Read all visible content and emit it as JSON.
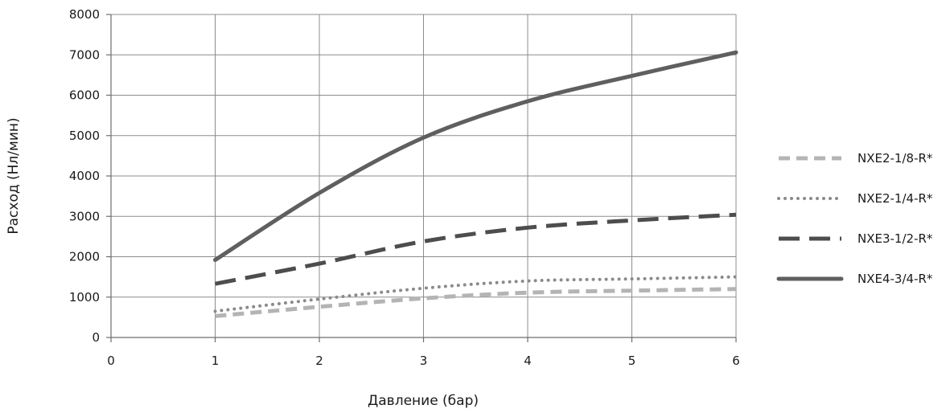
{
  "chart_data": {
    "type": "line",
    "title": "",
    "xlabel": "Давление (бар)",
    "ylabel": "Расход (Нл/мин)",
    "xlim": [
      0,
      6
    ],
    "ylim": [
      0,
      8000
    ],
    "x_ticks": [
      0,
      1,
      2,
      3,
      4,
      5,
      6
    ],
    "y_ticks": [
      0,
      1000,
      2000,
      3000,
      4000,
      5000,
      6000,
      7000,
      8000
    ],
    "grid": true,
    "legend_position": "right",
    "series": [
      {
        "name": "NXE2-1/8-R*",
        "style": "dashed",
        "color": "#b4b4b4",
        "x": [
          1,
          2,
          3,
          4,
          5,
          6
        ],
        "y": [
          530,
          760,
          970,
          1110,
          1160,
          1200
        ]
      },
      {
        "name": "NXE2-1/4-R*",
        "style": "dotted",
        "color": "#8a8a8a",
        "x": [
          1,
          2,
          3,
          4,
          5,
          6
        ],
        "y": [
          650,
          950,
          1220,
          1400,
          1450,
          1500
        ]
      },
      {
        "name": "NXE3-1/2-R*",
        "style": "long-dashed",
        "color": "#4d4d4d",
        "x": [
          1,
          2,
          3,
          4,
          5,
          6
        ],
        "y": [
          1330,
          1830,
          2380,
          2720,
          2900,
          3040
        ]
      },
      {
        "name": "NXE4-3/4-R*",
        "style": "solid",
        "color": "#5f5f5f",
        "x": [
          1,
          2,
          3,
          4,
          5,
          6
        ],
        "y": [
          1920,
          3580,
          4950,
          5850,
          6480,
          7060
        ]
      }
    ]
  }
}
